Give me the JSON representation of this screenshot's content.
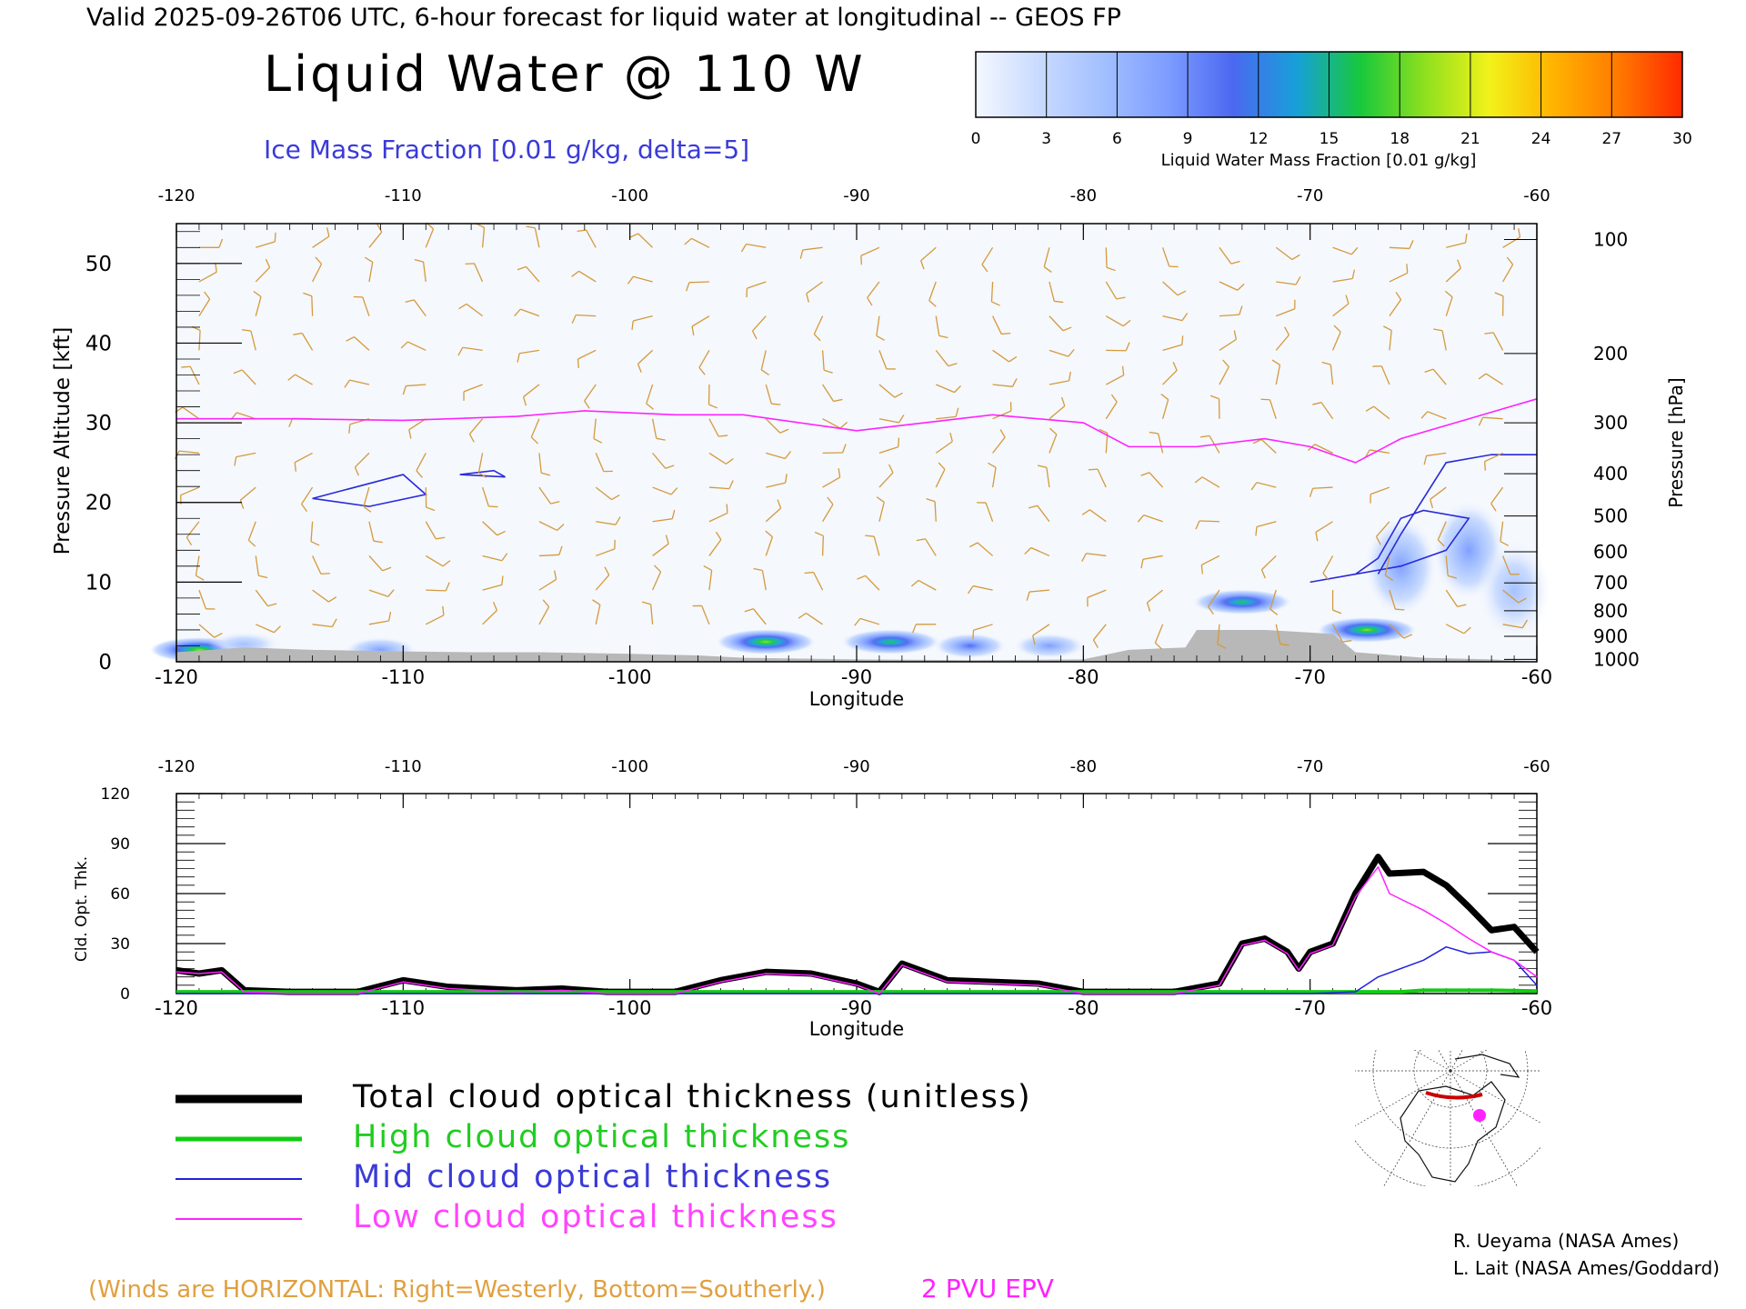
{
  "header": {
    "valid_line": "Valid 2025-09-26T06 UTC, 6-hour forecast for liquid water at longitudinal -- GEOS FP",
    "title": "Liquid Water @ 110 W",
    "subtitle": "Ice Mass Fraction [0.01 g/kg, delta=5]"
  },
  "colorbar": {
    "ticks": [
      "0",
      "3",
      "6",
      "9",
      "12",
      "15",
      "18",
      "21",
      "24",
      "27",
      "30"
    ],
    "label": "Liquid Water Mass Fraction [0.01 g/kg]",
    "colors": [
      "#f4f8ff",
      "#c8daff",
      "#a2bfff",
      "#7d9cff",
      "#4b68f0",
      "#17a0d8",
      "#18c93c",
      "#8fe01e",
      "#f2f21a",
      "#ffb300",
      "#ff7a00",
      "#ff2a00"
    ]
  },
  "chart_data": [
    {
      "type": "heatmap",
      "name": "cross-section",
      "xlabel": "Longitude",
      "ylabel": "Pressure Altitude [kft]",
      "y2label": "Pressure [hPa]",
      "xlim": [
        -120,
        -60
      ],
      "ylim": [
        0,
        55
      ],
      "xticks": [
        "-120",
        "-110",
        "-100",
        "-90",
        "-80",
        "-70",
        "-60"
      ],
      "yticks": [
        "0",
        "10",
        "20",
        "30",
        "40",
        "50"
      ],
      "pressure_ticks": [
        {
          "label": "100",
          "kft": 53
        },
        {
          "label": "200",
          "kft": 38.7
        },
        {
          "label": "300",
          "kft": 30
        },
        {
          "label": "400",
          "kft": 23.6
        },
        {
          "label": "500",
          "kft": 18.3
        },
        {
          "label": "600",
          "kft": 13.8
        },
        {
          "label": "700",
          "kft": 9.9
        },
        {
          "label": "800",
          "kft": 6.4
        },
        {
          "label": "900",
          "kft": 3.2
        },
        {
          "label": "1000",
          "kft": 0.3
        }
      ],
      "epv_2pvu_line": [
        [
          -120,
          30.5
        ],
        [
          -115,
          30.5
        ],
        [
          -110,
          30.3
        ],
        [
          -105,
          30.8
        ],
        [
          -102,
          31.5
        ],
        [
          -98,
          31
        ],
        [
          -95,
          31
        ],
        [
          -90,
          29
        ],
        [
          -87,
          30
        ],
        [
          -84,
          31
        ],
        [
          -80,
          30
        ],
        [
          -78,
          27
        ],
        [
          -75,
          27
        ],
        [
          -72,
          28
        ],
        [
          -70,
          27
        ],
        [
          -68,
          25
        ],
        [
          -66,
          28
        ],
        [
          -63,
          30.5
        ],
        [
          -60,
          33
        ]
      ],
      "liquid_water_patches": [
        {
          "lon": -119,
          "kft": 1.5,
          "value": 18
        },
        {
          "lon": -117,
          "kft": 2.2,
          "value": 6
        },
        {
          "lon": -111,
          "kft": 1.5,
          "value": 8
        },
        {
          "lon": -94,
          "kft": 2.5,
          "value": 18
        },
        {
          "lon": -88.5,
          "kft": 2.5,
          "value": 15
        },
        {
          "lon": -85,
          "kft": 2,
          "value": 10
        },
        {
          "lon": -81.5,
          "kft": 2,
          "value": 8
        },
        {
          "lon": -73,
          "kft": 7.5,
          "value": 15
        },
        {
          "lon": -67.5,
          "kft": 4,
          "value": 18
        },
        {
          "lon": -66,
          "kft": 12,
          "value": 9
        },
        {
          "lon": -63,
          "kft": 14,
          "value": 8
        },
        {
          "lon": -61,
          "kft": 9,
          "value": 6
        }
      ],
      "ice_contours_kft": [
        [
          [
            -114,
            20.5
          ],
          [
            -110,
            23.5
          ],
          [
            -109,
            21
          ],
          [
            -111.5,
            19.5
          ],
          [
            -114,
            20.5
          ]
        ],
        [
          [
            -107.5,
            23.5
          ],
          [
            -106,
            24
          ],
          [
            -105.5,
            23.2
          ],
          [
            -107.5,
            23.5
          ]
        ],
        [
          [
            -70,
            10
          ],
          [
            -68,
            11
          ],
          [
            -67,
            13
          ],
          [
            -66,
            18
          ],
          [
            -65,
            19
          ],
          [
            -63,
            18
          ],
          [
            -64,
            14
          ],
          [
            -66,
            12
          ],
          [
            -70,
            10
          ]
        ],
        [
          [
            -67,
            11
          ],
          [
            -66,
            16
          ],
          [
            -64,
            25
          ],
          [
            -62,
            26
          ],
          [
            -60,
            26
          ]
        ]
      ],
      "terrain_kft": [
        [
          -120,
          1.2
        ],
        [
          -117,
          1.8
        ],
        [
          -114,
          1.5
        ],
        [
          -110,
          1.3
        ],
        [
          -107,
          1.2
        ],
        [
          -104,
          1.2
        ],
        [
          -100,
          1
        ],
        [
          -97,
          0.8
        ],
        [
          -95,
          0.5
        ],
        [
          -90,
          0.3
        ],
        [
          -85,
          0.2
        ],
        [
          -80,
          0.3
        ],
        [
          -78,
          1.5
        ],
        [
          -75.5,
          1.8
        ],
        [
          -75,
          4
        ],
        [
          -72,
          4
        ],
        [
          -69,
          3.5
        ],
        [
          -68,
          1.2
        ],
        [
          -65,
          0.5
        ],
        [
          -62,
          0.3
        ],
        [
          -60,
          0
        ]
      ]
    },
    {
      "type": "line",
      "name": "cloud-optical-thickness",
      "xlabel": "Longitude",
      "ylabel": "Cld. Opt. Thk.",
      "xlim": [
        -120,
        -60
      ],
      "ylim": [
        0,
        120
      ],
      "xticks": [
        "-120",
        "-110",
        "-100",
        "-90",
        "-80",
        "-70",
        "-60"
      ],
      "yticks": [
        "0",
        "30",
        "60",
        "90",
        "120"
      ],
      "series": [
        {
          "name": "Total cloud optical thickness (unitless)",
          "color": "#000000",
          "width": 7,
          "points": [
            [
              -120,
              14
            ],
            [
              -119,
              12
            ],
            [
              -118,
              14
            ],
            [
              -117,
              2
            ],
            [
              -115,
              1
            ],
            [
              -112,
              1
            ],
            [
              -110,
              8
            ],
            [
              -108,
              4
            ],
            [
              -105,
              2
            ],
            [
              -103,
              3
            ],
            [
              -101,
              1
            ],
            [
              -98,
              1
            ],
            [
              -96,
              8
            ],
            [
              -94,
              13
            ],
            [
              -92,
              12
            ],
            [
              -90,
              6
            ],
            [
              -89,
              1
            ],
            [
              -88,
              18
            ],
            [
              -86,
              8
            ],
            [
              -84,
              7
            ],
            [
              -82,
              6
            ],
            [
              -80,
              1
            ],
            [
              -76,
              1
            ],
            [
              -74,
              6
            ],
            [
              -73,
              30
            ],
            [
              -72,
              33
            ],
            [
              -71,
              25
            ],
            [
              -70.5,
              15
            ],
            [
              -70,
              25
            ],
            [
              -69,
              30
            ],
            [
              -68,
              60
            ],
            [
              -67,
              82
            ],
            [
              -66.5,
              72
            ],
            [
              -65,
              73
            ],
            [
              -64,
              65
            ],
            [
              -63,
              52
            ],
            [
              -62,
              38
            ],
            [
              -61,
              40
            ],
            [
              -60,
              25
            ]
          ]
        },
        {
          "name": "High cloud optical thickness",
          "color": "#10cc10",
          "width": 4,
          "points": [
            [
              -120,
              1
            ],
            [
              -80,
              1
            ],
            [
              -70,
              1
            ],
            [
              -66,
              1
            ],
            [
              -65,
              2
            ],
            [
              -62,
              2
            ],
            [
              -60,
              1.5
            ]
          ]
        },
        {
          "name": "Mid cloud optical thickness",
          "color": "#2020e0",
          "width": 1.5,
          "points": [
            [
              -120,
              0
            ],
            [
              -70,
              0
            ],
            [
              -68,
              1
            ],
            [
              -67,
              10
            ],
            [
              -65,
              20
            ],
            [
              -64,
              28
            ],
            [
              -63,
              24
            ],
            [
              -62,
              25
            ],
            [
              -61,
              20
            ],
            [
              -60,
              5
            ]
          ]
        },
        {
          "name": "Low cloud optical thickness",
          "color": "#ff22ff",
          "width": 1.5,
          "points": [
            [
              -120,
              13
            ],
            [
              -119,
              12
            ],
            [
              -118,
              13
            ],
            [
              -117,
              1
            ],
            [
              -115,
              0
            ],
            [
              -112,
              0
            ],
            [
              -110,
              7
            ],
            [
              -108,
              3
            ],
            [
              -105,
              1
            ],
            [
              -103,
              2
            ],
            [
              -101,
              0
            ],
            [
              -98,
              0
            ],
            [
              -96,
              7
            ],
            [
              -94,
              12
            ],
            [
              -92,
              11
            ],
            [
              -90,
              5
            ],
            [
              -89,
              0
            ],
            [
              -88,
              17
            ],
            [
              -86,
              7
            ],
            [
              -84,
              6
            ],
            [
              -82,
              5
            ],
            [
              -80,
              0
            ],
            [
              -76,
              0
            ],
            [
              -74,
              5
            ],
            [
              -73,
              29
            ],
            [
              -72,
              32
            ],
            [
              -71,
              24
            ],
            [
              -70.5,
              14
            ],
            [
              -70,
              24
            ],
            [
              -69,
              29
            ],
            [
              -68,
              58
            ],
            [
              -67,
              76
            ],
            [
              -66.5,
              60
            ],
            [
              -65,
              50
            ],
            [
              -64,
              42
            ],
            [
              -63,
              33
            ],
            [
              -62,
              25
            ],
            [
              -61,
              20
            ],
            [
              -60,
              10
            ]
          ]
        }
      ]
    }
  ],
  "legend": {
    "total": "Total cloud optical thickness (unitless)",
    "high": "High cloud optical thickness",
    "mid": "Mid cloud optical thickness",
    "low": "Low cloud optical thickness"
  },
  "footer": {
    "winds_note": "(Winds are HORIZONTAL: Right=Westerly, Bottom=Southerly.)",
    "epv_label": "2 PVU EPV",
    "credit1": "R. Ueyama (NASA Ames)",
    "credit2": "L. Lait (NASA Ames/Goddard)"
  },
  "colors": {
    "wind": "#d49a3c",
    "epv": "#ff22ff",
    "ice": "#2a2ad8",
    "terrain": "#b8b8b8",
    "note": "#e0a040",
    "marker": "#ff22ff",
    "route": "#cc0000"
  }
}
